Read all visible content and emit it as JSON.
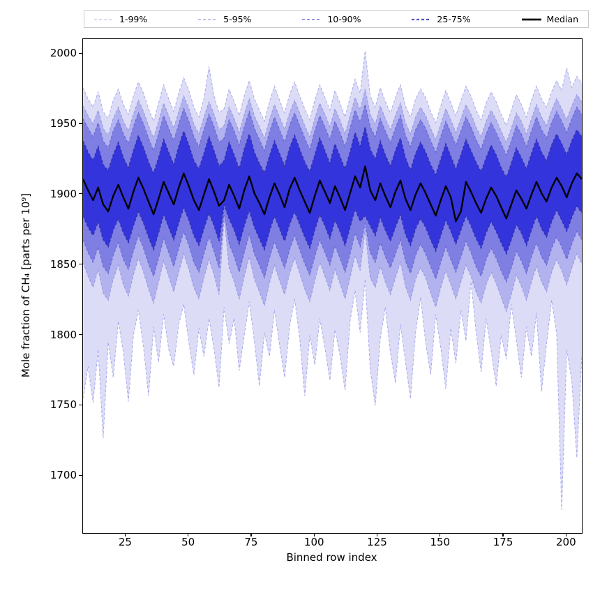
{
  "figure": {
    "xlabel": "Binned row index",
    "ylabel": "Mole fraction of CH₄ [parts per 10⁹]"
  },
  "legend": {
    "entries": [
      {
        "label": "1-99%",
        "color": "#b4b4ef",
        "width": 1,
        "dash": true
      },
      {
        "label": "5-95%",
        "color": "#9c9ce8",
        "width": 1.2,
        "dash": true
      },
      {
        "label": "10-90%",
        "color": "#7272da",
        "width": 1.5,
        "dash": true
      },
      {
        "label": "25-75%",
        "color": "#5050cc",
        "width": 2.2,
        "dash": true
      },
      {
        "label": "Median",
        "color": "#000000",
        "width": 2.8,
        "dash": false
      }
    ]
  },
  "chart_data": {
    "type": "area",
    "title": "",
    "xlabel": "Binned row index",
    "ylabel": "Mole fraction of CH₄ [parts per 10⁹]",
    "xlim": [
      8,
      206
    ],
    "ylim": [
      1659.5,
      2010.5
    ],
    "xticks": [
      25,
      50,
      75,
      100,
      125,
      150,
      175,
      200
    ],
    "yticks": [
      1700,
      1750,
      1800,
      1850,
      1900,
      1950,
      2000
    ],
    "grid": false,
    "legend_position": "top",
    "x_start": 8,
    "x_step": 2,
    "n": 100,
    "bands": [
      {
        "label": "1-99%",
        "lower": "p1",
        "upper": "p99",
        "fill": "#dcdcf7",
        "line": "#aaaaec",
        "lw": 1
      },
      {
        "label": "5-95%",
        "lower": "p5",
        "upper": "p95",
        "fill": "#b2b2ee",
        "line": "#9898e6",
        "lw": 1.1
      },
      {
        "label": "10-90%",
        "lower": "p10",
        "upper": "p90",
        "fill": "#7f7fe3",
        "line": "#6a6ad6",
        "lw": 1.3
      },
      {
        "label": "25-75%",
        "lower": "p25",
        "upper": "p75",
        "fill": "#3434dd",
        "line": "#3232b2",
        "lw": 1.6
      }
    ],
    "median_style": {
      "label": "Median",
      "color": "#000000",
      "lw": 2.4
    },
    "series": {
      "median": [
        1911,
        1903,
        1896,
        1905,
        1893,
        1888,
        1899,
        1907,
        1898,
        1890,
        1902,
        1912,
        1904,
        1895,
        1886,
        1897,
        1909,
        1901,
        1893,
        1905,
        1915,
        1906,
        1896,
        1889,
        1900,
        1911,
        1902,
        1892,
        1896,
        1907,
        1899,
        1890,
        1903,
        1913,
        1901,
        1894,
        1886,
        1898,
        1908,
        1900,
        1891,
        1904,
        1912,
        1903,
        1895,
        1887,
        1899,
        1910,
        1902,
        1894,
        1906,
        1898,
        1889,
        1901,
        1913,
        1905,
        1920,
        1903,
        1896,
        1908,
        1899,
        1891,
        1902,
        1910,
        1897,
        1889,
        1900,
        1908,
        1901,
        1893,
        1885,
        1896,
        1906,
        1898,
        1881,
        1888,
        1909,
        1902,
        1894,
        1887,
        1897,
        1905,
        1899,
        1891,
        1883,
        1893,
        1903,
        1897,
        1890,
        1900,
        1909,
        1901,
        1895,
        1905,
        1912,
        1906,
        1898,
        1908,
        1915,
        1911
      ],
      "p75": [
        1938,
        1930,
        1924,
        1934,
        1921,
        1917,
        1928,
        1937,
        1926,
        1919,
        1931,
        1942,
        1933,
        1923,
        1915,
        1926,
        1939,
        1930,
        1921,
        1934,
        1945,
        1935,
        1924,
        1918,
        1929,
        1941,
        1931,
        1920,
        1924,
        1937,
        1928,
        1918,
        1932,
        1943,
        1930,
        1922,
        1915,
        1927,
        1938,
        1929,
        1920,
        1933,
        1942,
        1932,
        1923,
        1916,
        1928,
        1940,
        1931,
        1922,
        1936,
        1927,
        1918,
        1930,
        1944,
        1934,
        1948,
        1932,
        1925,
        1938,
        1928,
        1920,
        1931,
        1940,
        1926,
        1917,
        1929,
        1937,
        1930,
        1921,
        1914,
        1925,
        1936,
        1927,
        1918,
        1928,
        1939,
        1931,
        1923,
        1916,
        1926,
        1935,
        1928,
        1919,
        1912,
        1922,
        1933,
        1926,
        1918,
        1929,
        1939,
        1930,
        1924,
        1935,
        1943,
        1936,
        1928,
        1938,
        1946,
        1941
      ],
      "p90": [
        1954,
        1947,
        1941,
        1951,
        1938,
        1933,
        1945,
        1953,
        1943,
        1936,
        1948,
        1958,
        1950,
        1940,
        1931,
        1943,
        1956,
        1947,
        1938,
        1950,
        1961,
        1952,
        1941,
        1934,
        1946,
        1957,
        1948,
        1937,
        1940,
        1953,
        1945,
        1935,
        1948,
        1959,
        1947,
        1939,
        1931,
        1944,
        1955,
        1946,
        1937,
        1949,
        1958,
        1949,
        1940,
        1932,
        1945,
        1956,
        1948,
        1939,
        1952,
        1944,
        1934,
        1947,
        1960,
        1951,
        1964,
        1948,
        1941,
        1954,
        1945,
        1937,
        1947,
        1956,
        1942,
        1934,
        1946,
        1953,
        1947,
        1938,
        1930,
        1941,
        1952,
        1944,
        1935,
        1945,
        1955,
        1948,
        1939,
        1932,
        1943,
        1951,
        1944,
        1936,
        1928,
        1938,
        1949,
        1943,
        1934,
        1945,
        1955,
        1946,
        1940,
        1951,
        1959,
        1952,
        1944,
        1954,
        1962,
        1957
      ],
      "p95": [
        1963,
        1956,
        1950,
        1960,
        1947,
        1942,
        1954,
        1962,
        1952,
        1945,
        1957,
        1967,
        1959,
        1949,
        1940,
        1952,
        1965,
        1956,
        1947,
        1959,
        1970,
        1961,
        1950,
        1943,
        1955,
        1966,
        1957,
        1946,
        1949,
        1962,
        1954,
        1944,
        1957,
        1968,
        1956,
        1948,
        1940,
        1953,
        1964,
        1955,
        1946,
        1958,
        1967,
        1958,
        1949,
        1941,
        1954,
        1965,
        1957,
        1948,
        1961,
        1953,
        1943,
        1956,
        1969,
        1960,
        1975,
        1957,
        1950,
        1963,
        1954,
        1946,
        1956,
        1965,
        1951,
        1943,
        1955,
        1962,
        1956,
        1947,
        1939,
        1950,
        1961,
        1953,
        1944,
        1954,
        1964,
        1957,
        1948,
        1941,
        1952,
        1960,
        1953,
        1945,
        1937,
        1947,
        1958,
        1952,
        1943,
        1954,
        1964,
        1955,
        1949,
        1960,
        1968,
        1961,
        1953,
        1963,
        1971,
        1966
      ],
      "p99": [
        1976,
        1968,
        1962,
        1973,
        1959,
        1954,
        1967,
        1975,
        1964,
        1957,
        1970,
        1980,
        1972,
        1961,
        1952,
        1965,
        1978,
        1968,
        1959,
        1972,
        1983,
        1974,
        1962,
        1955,
        1968,
        1991,
        1970,
        1958,
        1961,
        1975,
        1966,
        1956,
        1970,
        1981,
        1968,
        1960,
        1952,
        1966,
        1977,
        1967,
        1958,
        1971,
        1980,
        1970,
        1961,
        1953,
        1967,
        1978,
        1969,
        1960,
        1974,
        1965,
        1955,
        1969,
        1982,
        1972,
        2002,
        1970,
        1962,
        1976,
        1966,
        1958,
        1969,
        1978,
        1963,
        1955,
        1968,
        1975,
        1969,
        1959,
        1951,
        1963,
        1974,
        1965,
        1956,
        1967,
        1977,
        1970,
        1960,
        1953,
        1965,
        1973,
        1966,
        1957,
        1949,
        1960,
        1971,
        1964,
        1955,
        1967,
        1977,
        1968,
        1962,
        1973,
        1981,
        1974,
        1990,
        1976,
        1984,
        1979
      ],
      "p25": [
        1885,
        1877,
        1871,
        1881,
        1868,
        1863,
        1875,
        1883,
        1873,
        1866,
        1878,
        1888,
        1880,
        1870,
        1861,
        1873,
        1886,
        1877,
        1868,
        1880,
        1891,
        1882,
        1871,
        1864,
        1876,
        1887,
        1878,
        1867,
        1893,
        1883,
        1875,
        1865,
        1878,
        1889,
        1877,
        1869,
        1861,
        1874,
        1885,
        1876,
        1867,
        1879,
        1888,
        1879,
        1870,
        1862,
        1875,
        1886,
        1878,
        1869,
        1882,
        1874,
        1864,
        1877,
        1890,
        1881,
        1885,
        1878,
        1871,
        1884,
        1875,
        1867,
        1877,
        1886,
        1872,
        1864,
        1876,
        1883,
        1877,
        1868,
        1860,
        1871,
        1882,
        1874,
        1865,
        1875,
        1885,
        1878,
        1869,
        1862,
        1873,
        1881,
        1874,
        1866,
        1858,
        1868,
        1879,
        1873,
        1864,
        1875,
        1885,
        1876,
        1870,
        1881,
        1889,
        1882,
        1874,
        1884,
        1892,
        1887
      ],
      "p10": [
        1868,
        1859,
        1852,
        1863,
        1849,
        1844,
        1857,
        1866,
        1854,
        1847,
        1860,
        1871,
        1862,
        1851,
        1842,
        1855,
        1869,
        1859,
        1849,
        1862,
        1874,
        1864,
        1852,
        1845,
        1858,
        1870,
        1860,
        1848,
        1888,
        1865,
        1856,
        1845,
        1859,
        1872,
        1858,
        1850,
        1841,
        1855,
        1867,
        1857,
        1848,
        1861,
        1871,
        1861,
        1851,
        1843,
        1856,
        1868,
        1859,
        1850,
        1864,
        1855,
        1845,
        1858,
        1873,
        1863,
        1880,
        1859,
        1852,
        1866,
        1856,
        1848,
        1858,
        1868,
        1853,
        1844,
        1857,
        1865,
        1858,
        1849,
        1840,
        1852,
        1863,
        1854,
        1845,
        1856,
        1867,
        1859,
        1849,
        1842,
        1854,
        1862,
        1855,
        1846,
        1838,
        1848,
        1860,
        1853,
        1844,
        1856,
        1866,
        1856,
        1850,
        1862,
        1870,
        1863,
        1854,
        1865,
        1874,
        1868
      ],
      "p5": [
        1852,
        1842,
        1834,
        1847,
        1830,
        1825,
        1840,
        1850,
        1836,
        1828,
        1843,
        1855,
        1845,
        1833,
        1823,
        1838,
        1853,
        1842,
        1831,
        1845,
        1858,
        1847,
        1834,
        1826,
        1841,
        1854,
        1843,
        1829,
        1884,
        1848,
        1838,
        1826,
        1842,
        1856,
        1840,
        1831,
        1821,
        1837,
        1850,
        1839,
        1829,
        1844,
        1855,
        1844,
        1833,
        1824,
        1839,
        1852,
        1842,
        1832,
        1847,
        1837,
        1826,
        1841,
        1857,
        1846,
        1875,
        1841,
        1834,
        1849,
        1838,
        1829,
        1841,
        1852,
        1835,
        1825,
        1840,
        1848,
        1841,
        1830,
        1820,
        1834,
        1846,
        1836,
        1826,
        1838,
        1850,
        1842,
        1831,
        1823,
        1836,
        1845,
        1837,
        1827,
        1817,
        1829,
        1843,
        1835,
        1825,
        1838,
        1849,
        1838,
        1831,
        1845,
        1854,
        1846,
        1836,
        1848,
        1858,
        1851
      ],
      "p1": [
        1755,
        1778,
        1752,
        1790,
        1727,
        1795,
        1770,
        1810,
        1788,
        1753,
        1800,
        1818,
        1792,
        1757,
        1806,
        1781,
        1815,
        1790,
        1778,
        1808,
        1822,
        1795,
        1772,
        1805,
        1785,
        1812,
        1790,
        1763,
        1820,
        1794,
        1812,
        1775,
        1800,
        1824,
        1796,
        1764,
        1802,
        1785,
        1818,
        1793,
        1770,
        1806,
        1826,
        1798,
        1757,
        1800,
        1779,
        1812,
        1791,
        1768,
        1804,
        1786,
        1761,
        1810,
        1832,
        1802,
        1840,
        1776,
        1750,
        1798,
        1820,
        1788,
        1766,
        1808,
        1781,
        1755,
        1802,
        1827,
        1795,
        1772,
        1815,
        1791,
        1762,
        1805,
        1780,
        1818,
        1796,
        1838,
        1803,
        1774,
        1812,
        1789,
        1764,
        1800,
        1783,
        1822,
        1797,
        1770,
        1806,
        1785,
        1816,
        1760,
        1794,
        1825,
        1801,
        1676,
        1790,
        1768,
        1713,
        1786
      ]
    }
  }
}
